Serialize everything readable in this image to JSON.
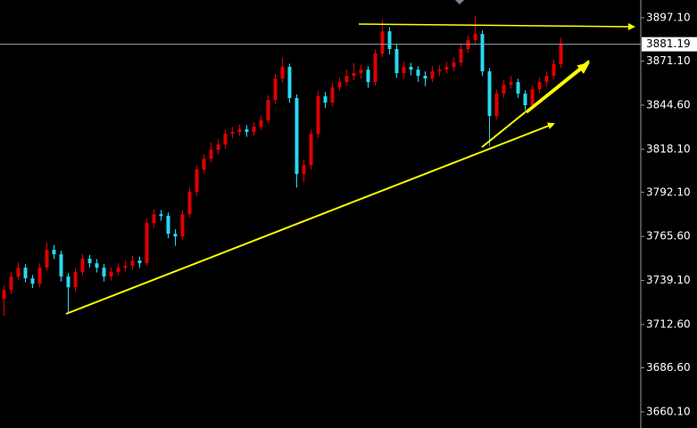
{
  "chart_data": {
    "type": "candlestick",
    "up_color": "#e10000",
    "down_color": "#29d8f0",
    "ylim": [
      3650.4,
      3907.8
    ],
    "yticks": [
      {
        "value": 3897.1,
        "label": "3897.10"
      },
      {
        "value": 3871.1,
        "label": "3871.10"
      },
      {
        "value": 3844.6,
        "label": "3844.60"
      },
      {
        "value": 3818.1,
        "label": "3818.10"
      },
      {
        "value": 3792.1,
        "label": "3792.10"
      },
      {
        "value": 3765.6,
        "label": "3765.60"
      },
      {
        "value": 3739.1,
        "label": "3739.10"
      },
      {
        "value": 3712.6,
        "label": "3712.60"
      },
      {
        "value": 3686.6,
        "label": "3686.60"
      },
      {
        "value": 3660.1,
        "label": "3660.10"
      }
    ],
    "last_price": 3881.19,
    "open": [
      3728.0,
      3733.4,
      3741.5,
      3746.8,
      3740.4,
      3737.2,
      3746.8,
      3757.6,
      3754.9,
      3741.5,
      3735.0,
      3744.2,
      3752.2,
      3749.5,
      3746.8,
      3741.5,
      3744.2,
      3746.8,
      3747.9,
      3751.1,
      3749.5,
      3773.7,
      3779.0,
      3778.0,
      3767.2,
      3765.6,
      3779.0,
      3792.5,
      3805.9,
      3812.3,
      3817.7,
      3820.9,
      3827.3,
      3828.4,
      3830.0,
      3828.4,
      3831.6,
      3835.4,
      3847.7,
      3860.6,
      3867.6,
      3848.8,
      3803.2,
      3808.5,
      3827.3,
      3849.9,
      3846.1,
      3855.2,
      3858.4,
      3862.2,
      3863.8,
      3865.9,
      3858.4,
      3875.6,
      3889.0,
      3878.3,
      3863.8,
      3867.6,
      3865.9,
      3862.2,
      3860.6,
      3864.9,
      3865.9,
      3867.6,
      3870.2,
      3878.3,
      3883.7,
      3887.4,
      3864.9,
      3838.1,
      3851.5,
      3856.8,
      3858.4,
      3851.5,
      3844.5,
      3854.1,
      3858.4,
      3862.2,
      3869.2
    ],
    "high": [
      3736.0,
      3744.0,
      3750.0,
      3749.0,
      3742.5,
      3749.5,
      3762.0,
      3760.5,
      3757.0,
      3743.5,
      3746.5,
      3755.0,
      3754.5,
      3752.0,
      3749.0,
      3747.0,
      3749.5,
      3751.0,
      3754.0,
      3753.5,
      3776.5,
      3782.0,
      3781.5,
      3780.0,
      3770.0,
      3781.5,
      3795.0,
      3808.5,
      3815.0,
      3822.0,
      3824.0,
      3830.0,
      3831.5,
      3833.0,
      3832.5,
      3834.5,
      3838.5,
      3850.5,
      3863.5,
      3873.0,
      3869.5,
      3851.0,
      3812.0,
      3830.0,
      3853.0,
      3852.5,
      3858.0,
      3861.5,
      3866.0,
      3870.0,
      3869.0,
      3868.0,
      3878.0,
      3896.0,
      3891.5,
      3881.0,
      3870.5,
      3870.0,
      3868.0,
      3865.0,
      3868.0,
      3868.5,
      3870.5,
      3873.5,
      3881.0,
      3886.5,
      3898.0,
      3889.5,
      3867.0,
      3854.0,
      3860.0,
      3862.0,
      3860.5,
      3853.5,
      3856.5,
      3861.0,
      3865.0,
      3872.0,
      3885.0
    ],
    "low": [
      3718.0,
      3731.0,
      3739.5,
      3738.0,
      3734.5,
      3735.0,
      3745.0,
      3752.0,
      3738.5,
      3720.0,
      3732.5,
      3742.0,
      3747.0,
      3744.0,
      3738.5,
      3739.0,
      3742.0,
      3744.5,
      3745.5,
      3746.5,
      3748.0,
      3771.0,
      3775.0,
      3764.5,
      3760.0,
      3763.5,
      3777.0,
      3790.0,
      3803.5,
      3810.0,
      3815.0,
      3818.5,
      3824.5,
      3826.0,
      3825.5,
      3826.0,
      3829.5,
      3833.5,
      3845.5,
      3858.0,
      3846.0,
      3795.0,
      3798.0,
      3806.0,
      3825.0,
      3843.0,
      3844.0,
      3853.0,
      3856.0,
      3859.5,
      3860.5,
      3855.0,
      3856.5,
      3873.5,
      3875.0,
      3861.0,
      3860.5,
      3862.5,
      3858.5,
      3856.0,
      3858.5,
      3862.0,
      3863.5,
      3865.0,
      3868.0,
      3876.0,
      3881.0,
      3862.0,
      3820.0,
      3836.0,
      3849.0,
      3854.5,
      3849.0,
      3841.5,
      3842.5,
      3852.0,
      3855.5,
      3860.0,
      3867.0
    ],
    "close": [
      3733.4,
      3741.5,
      3746.8,
      3740.4,
      3737.2,
      3746.8,
      3757.6,
      3754.9,
      3741.5,
      3735.0,
      3744.2,
      3752.2,
      3749.5,
      3746.8,
      3741.5,
      3744.2,
      3746.8,
      3747.9,
      3751.1,
      3749.5,
      3773.7,
      3779.0,
      3778.0,
      3767.2,
      3765.6,
      3779.0,
      3792.5,
      3805.9,
      3812.3,
      3817.7,
      3820.9,
      3827.3,
      3828.4,
      3830.0,
      3828.4,
      3831.6,
      3835.4,
      3847.7,
      3860.6,
      3867.6,
      3848.8,
      3803.2,
      3808.5,
      3827.3,
      3849.9,
      3846.1,
      3855.2,
      3858.4,
      3862.2,
      3863.8,
      3865.9,
      3858.4,
      3875.6,
      3889.0,
      3878.3,
      3863.8,
      3867.6,
      3865.9,
      3862.2,
      3860.6,
      3864.9,
      3865.9,
      3867.6,
      3870.2,
      3878.3,
      3883.7,
      3887.4,
      3864.9,
      3838.1,
      3851.5,
      3856.8,
      3858.4,
      3851.5,
      3844.5,
      3854.1,
      3858.4,
      3862.2,
      3869.2,
      3881.19
    ]
  }
}
